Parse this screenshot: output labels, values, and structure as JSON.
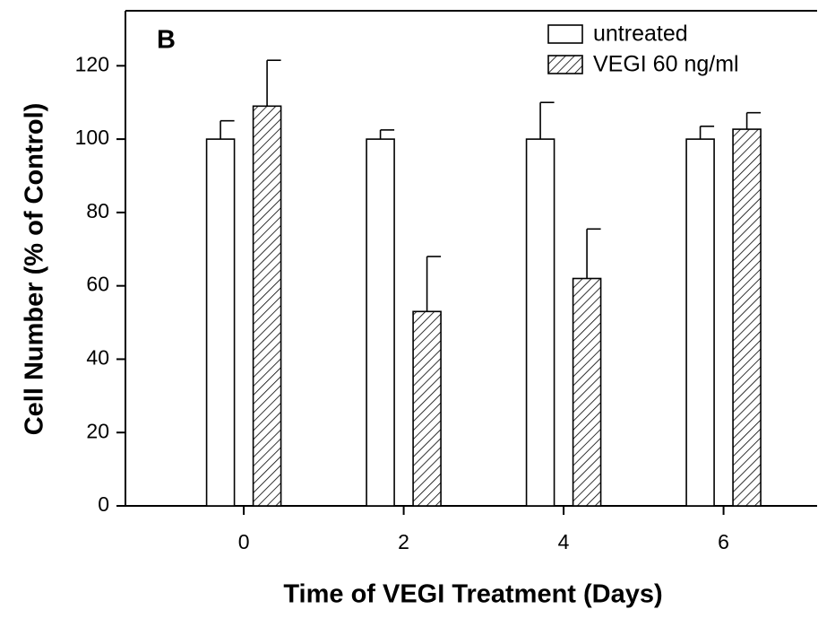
{
  "chart_data": {
    "type": "bar",
    "panel_label": "B",
    "x_label": "Time of VEGI Treatment (Days)",
    "y_label": "Cell Number (% of Control)",
    "x": [
      0,
      2,
      4,
      6
    ],
    "xlim": [
      -1.48,
      7.17
    ],
    "xticks": [
      0,
      2,
      4,
      6
    ],
    "ylim": [
      0,
      135
    ],
    "yticks": [
      0,
      20,
      40,
      60,
      80,
      100,
      120
    ],
    "legend": "upper right",
    "series": [
      {
        "name": "untreated",
        "color": "#ffffff",
        "hatch": false,
        "values": [
          100,
          100,
          100,
          100
        ],
        "errors": [
          5,
          2.5,
          10,
          3.5
        ]
      },
      {
        "name": "VEGI 60 ng/ml",
        "color": "#ffffff",
        "hatch": true,
        "values": [
          109,
          53,
          62,
          102.7
        ],
        "errors": [
          12.5,
          15,
          13.5,
          4.5
        ]
      }
    ]
  }
}
